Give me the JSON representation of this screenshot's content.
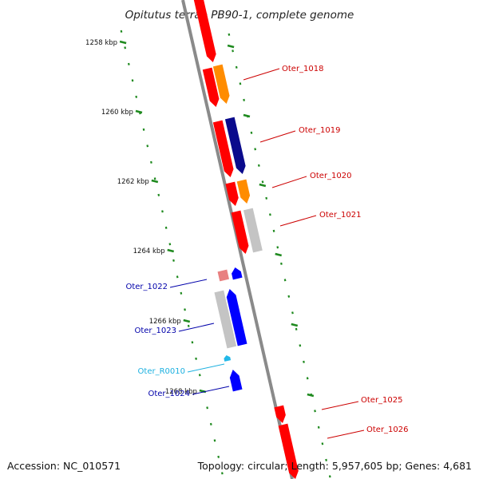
{
  "title": "Opitutus terrae PB90-1, complete genome",
  "footer": {
    "accession": "Accession: NC_010571",
    "topology": "Topology: circular; Length: 5,957,605 bp; Genes: 4,681"
  },
  "colors": {
    "backbone": "#8a8a8a",
    "tick": "#1f8a1f",
    "fwd_cds": "#ff0000",
    "fwd_other": "#ff8c00",
    "fwd_hypo": "#0a0a8c",
    "rev_pseudo": "#e88080",
    "rev_cds": "#0000ff",
    "rev_hypo": "#c4c4c4",
    "rev_rna": "#22b8e8",
    "label_fwd": "#cc0000",
    "label_rev": "#0000aa",
    "label_rna": "#1cb0e0"
  },
  "scale": {
    "ticks": [
      {
        "label": "1258 kbp"
      },
      {
        "label": "1260 kbp"
      },
      {
        "label": "1262 kbp"
      },
      {
        "label": "1264 kbp"
      },
      {
        "label": "1266 kbp"
      },
      {
        "label": "1268 kbp"
      }
    ]
  },
  "genes": [
    {
      "name": "Oter_1018",
      "strand": "+",
      "color": "#ff0000",
      "labeled": true
    },
    {
      "name": "Oter_1019",
      "strand": "+",
      "color": "#ff0000",
      "labeled": true
    },
    {
      "name": "Oter_1020",
      "strand": "+",
      "color": "#ff0000",
      "labeled": true
    },
    {
      "name": "Oter_1021",
      "strand": "+",
      "color": "#ff0000",
      "labeled": true
    },
    {
      "name": "Oter_1022",
      "strand": "-",
      "color": "#0000ff",
      "labeled": true
    },
    {
      "name": "Oter_1023",
      "strand": "-",
      "color": "#0000ff",
      "labeled": true
    },
    {
      "name": "Oter_R0010",
      "strand": "-",
      "color": "#22b8e8",
      "labeled": true
    },
    {
      "name": "Oter_1024",
      "strand": "-",
      "color": "#0000ff",
      "labeled": true
    },
    {
      "name": "Oter_1025",
      "strand": "+",
      "color": "#ff0000",
      "labeled": true
    },
    {
      "name": "Oter_1026",
      "strand": "+",
      "color": "#ff0000",
      "labeled": true
    }
  ]
}
